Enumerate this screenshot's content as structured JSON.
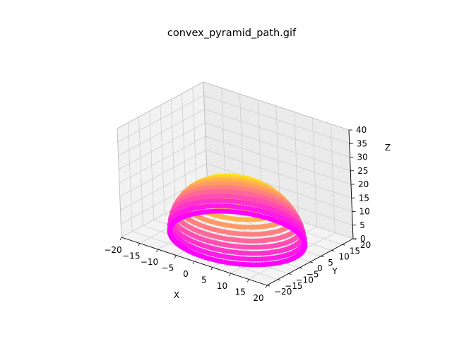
{
  "chart_data": {
    "type": "scatter3d",
    "title": "convex_pyramid_path.gif",
    "xlabel": "X",
    "ylabel": "Y",
    "zlabel": "Z",
    "xlim": [
      -20,
      20
    ],
    "ylim": [
      -20,
      20
    ],
    "zlim": [
      0,
      40
    ],
    "x_ticks": [
      "−20",
      "−15",
      "−10",
      "−5",
      "0",
      "5",
      "10",
      "15",
      "20"
    ],
    "y_ticks": [
      "−20",
      "−15",
      "−10",
      "−5",
      "0",
      "5",
      "10",
      "15",
      "20"
    ],
    "z_ticks": [
      "0",
      "5",
      "10",
      "15",
      "20",
      "25",
      "30",
      "35",
      "40"
    ],
    "grid": true,
    "colormap": "spring",
    "colormap_low": "#ff00ff",
    "colormap_high": "#ffff00",
    "shape": "convex dome of stacked rings (spiral path)",
    "base_radius": 16,
    "peak_z": 20,
    "ring_count": 11
  }
}
